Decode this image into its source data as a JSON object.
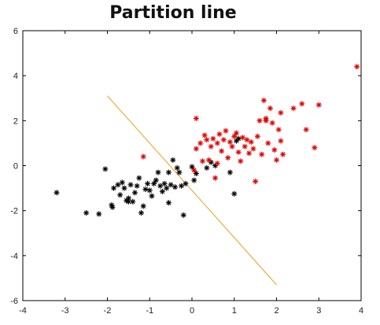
{
  "chart_data": {
    "type": "scatter",
    "title": "Partition line",
    "xlabel": "",
    "ylabel": "",
    "xlim": [
      -4,
      4
    ],
    "ylim": [
      -6,
      6
    ],
    "xticks": [
      -4,
      -3,
      -2,
      -1,
      0,
      1,
      2,
      3,
      4
    ],
    "yticks": [
      -6,
      -4,
      -2,
      0,
      2,
      4,
      6
    ],
    "grid": false,
    "legend": "none",
    "marker": "asterisk",
    "series": [
      {
        "color": "#000000",
        "points": [
          [
            -3.2,
            -1.2
          ],
          [
            -2.5,
            -2.1
          ],
          [
            -2.2,
            -2.15
          ],
          [
            -2.05,
            -0.15
          ],
          [
            -1.9,
            -1.75
          ],
          [
            -1.88,
            -1.85
          ],
          [
            -1.85,
            -1.0
          ],
          [
            -1.75,
            -0.85
          ],
          [
            -1.7,
            -1.3
          ],
          [
            -1.65,
            -0.75
          ],
          [
            -1.6,
            -1.0
          ],
          [
            -1.55,
            -1.55
          ],
          [
            -1.5,
            -1.6
          ],
          [
            -1.5,
            -1.45
          ],
          [
            -1.45,
            -0.85
          ],
          [
            -1.4,
            -1.6
          ],
          [
            -1.35,
            -1.2
          ],
          [
            -1.3,
            -0.9
          ],
          [
            -1.25,
            -0.55
          ],
          [
            -1.2,
            -2.1
          ],
          [
            -1.15,
            -1.8
          ],
          [
            -1.1,
            -1.05
          ],
          [
            -1.05,
            -0.8
          ],
          [
            -1.0,
            -1.1
          ],
          [
            -0.95,
            -1.35
          ],
          [
            -0.9,
            -0.8
          ],
          [
            -0.85,
            -0.65
          ],
          [
            -0.8,
            -0.3
          ],
          [
            -0.75,
            -0.9
          ],
          [
            -0.7,
            -1.15
          ],
          [
            -0.65,
            -0.8
          ],
          [
            -0.6,
            -1.0
          ],
          [
            -0.55,
            -1.65
          ],
          [
            -0.55,
            -0.3
          ],
          [
            -0.5,
            -0.85
          ],
          [
            -0.45,
            0.25
          ],
          [
            -0.4,
            -0.95
          ],
          [
            -0.35,
            -0.1
          ],
          [
            -0.3,
            -0.3
          ],
          [
            -0.25,
            -0.9
          ],
          [
            -0.2,
            -2.2
          ],
          [
            -0.15,
            -0.8
          ],
          [
            0.0,
            -0.05
          ],
          [
            0.05,
            -0.65
          ],
          [
            0.1,
            -0.35
          ],
          [
            0.35,
            -0.1
          ],
          [
            0.45,
            0.15
          ],
          [
            0.55,
            0.0
          ],
          [
            0.9,
            -0.3
          ],
          [
            1.0,
            -1.25
          ],
          [
            1.05,
            1.1
          ],
          [
            1.1,
            1.2
          ]
        ]
      },
      {
        "color": "#e00000",
        "points": [
          [
            -1.15,
            0.4
          ],
          [
            0.05,
            -0.2
          ],
          [
            0.1,
            2.1
          ],
          [
            0.1,
            0.75
          ],
          [
            0.2,
            1.0
          ],
          [
            0.25,
            0.2
          ],
          [
            0.3,
            1.35
          ],
          [
            0.35,
            1.15
          ],
          [
            0.4,
            0.25
          ],
          [
            0.45,
            0.85
          ],
          [
            0.5,
            1.2
          ],
          [
            0.55,
            -0.55
          ],
          [
            0.6,
            0.1
          ],
          [
            0.6,
            1.0
          ],
          [
            0.65,
            1.4
          ],
          [
            0.7,
            0.65
          ],
          [
            0.75,
            1.15
          ],
          [
            0.8,
            1.55
          ],
          [
            0.85,
            0.35
          ],
          [
            0.9,
            1.05
          ],
          [
            0.95,
            0.85
          ],
          [
            1.0,
            1.3
          ],
          [
            1.05,
            1.45
          ],
          [
            1.1,
            0.6
          ],
          [
            1.15,
            0.2
          ],
          [
            1.2,
            1.25
          ],
          [
            1.25,
            0.85
          ],
          [
            1.3,
            1.15
          ],
          [
            1.35,
            0.55
          ],
          [
            1.4,
            1.05
          ],
          [
            1.45,
            0.75
          ],
          [
            1.5,
            -0.7
          ],
          [
            1.55,
            1.3
          ],
          [
            1.6,
            2.0
          ],
          [
            1.65,
            0.5
          ],
          [
            1.7,
            2.9
          ],
          [
            1.75,
            2.0
          ],
          [
            1.75,
            2.1
          ],
          [
            1.8,
            1.0
          ],
          [
            1.85,
            2.55
          ],
          [
            1.9,
            1.9
          ],
          [
            1.95,
            0.7
          ],
          [
            2.0,
            0.25
          ],
          [
            2.05,
            1.6
          ],
          [
            2.1,
            2.35
          ],
          [
            2.1,
            1.1
          ],
          [
            2.15,
            0.5
          ],
          [
            2.4,
            2.55
          ],
          [
            2.6,
            2.75
          ],
          [
            2.7,
            1.6
          ],
          [
            2.9,
            0.8
          ],
          [
            3.0,
            2.7
          ],
          [
            3.9,
            4.4
          ]
        ]
      }
    ],
    "partition_line": {
      "color": "#e8a020",
      "points": [
        [
          -2.0,
          3.1
        ],
        [
          2.0,
          -5.3
        ]
      ]
    }
  }
}
